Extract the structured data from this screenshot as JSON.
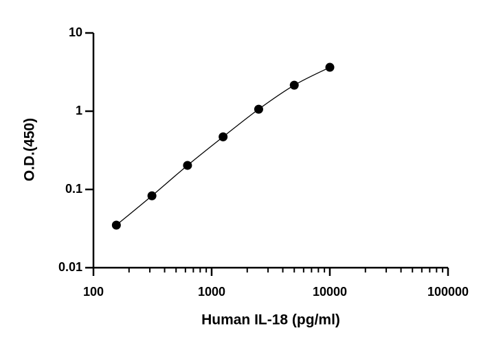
{
  "chart_data": {
    "type": "scatter",
    "x_label": "Human IL-18 (pg/ml)",
    "y_label": "O.D.(450)",
    "x": [
      156.25,
      312.5,
      625,
      1250,
      2500,
      5000,
      10000
    ],
    "values": [
      0.035,
      0.083,
      0.203,
      0.47,
      1.06,
      2.15,
      3.64
    ],
    "color": "#000000",
    "x_log": true,
    "y_log": true,
    "xlim": [
      100,
      100000
    ],
    "xticks": [
      100,
      1000,
      10000,
      100000
    ],
    "ylim": [
      0.01,
      10
    ],
    "yticks": [
      0.01,
      0.1,
      1,
      10
    ],
    "x_minor_ticks": true,
    "fit_curve": true
  }
}
